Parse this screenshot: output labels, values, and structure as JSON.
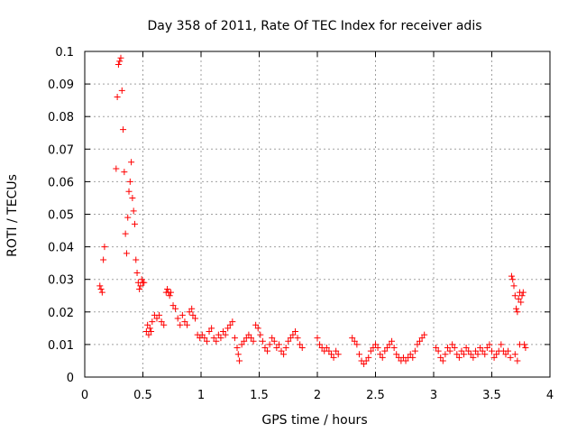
{
  "chart_data": {
    "type": "scatter",
    "title": "Day 358 of 2011, Rate Of TEC Index for receiver adis",
    "xlabel": "GPS time / hours",
    "ylabel": "ROTI / TECUs",
    "xlim": [
      0,
      4
    ],
    "ylim": [
      0,
      0.1
    ],
    "x_ticks": [
      0,
      0.5,
      1,
      1.5,
      2,
      2.5,
      3,
      3.5,
      4
    ],
    "x_tick_labels": [
      "0",
      "0.5",
      "1",
      "1.5",
      "2",
      "2.5",
      "3",
      "3.5",
      "4"
    ],
    "y_ticks": [
      0,
      0.01,
      0.02,
      0.03,
      0.04,
      0.05,
      0.06,
      0.07,
      0.08,
      0.09,
      0.1
    ],
    "y_tick_labels": [
      "0",
      "0.01",
      "0.02",
      "0.03",
      "0.04",
      "0.05",
      "0.06",
      "0.07",
      "0.08",
      "0.09",
      "0.1"
    ],
    "grid": true,
    "marker": "+",
    "color": "#ff0000",
    "series": [
      {
        "name": "ROTI",
        "points": [
          [
            0.13,
            0.028
          ],
          [
            0.14,
            0.027
          ],
          [
            0.15,
            0.026
          ],
          [
            0.16,
            0.036
          ],
          [
            0.17,
            0.04
          ],
          [
            0.27,
            0.064
          ],
          [
            0.28,
            0.086
          ],
          [
            0.29,
            0.096
          ],
          [
            0.3,
            0.097
          ],
          [
            0.31,
            0.098
          ],
          [
            0.32,
            0.088
          ],
          [
            0.33,
            0.076
          ],
          [
            0.34,
            0.063
          ],
          [
            0.35,
            0.044
          ],
          [
            0.36,
            0.038
          ],
          [
            0.37,
            0.049
          ],
          [
            0.38,
            0.057
          ],
          [
            0.39,
            0.06
          ],
          [
            0.4,
            0.066
          ],
          [
            0.41,
            0.055
          ],
          [
            0.42,
            0.051
          ],
          [
            0.43,
            0.047
          ],
          [
            0.44,
            0.036
          ],
          [
            0.45,
            0.032
          ],
          [
            0.46,
            0.029
          ],
          [
            0.47,
            0.027
          ],
          [
            0.48,
            0.028
          ],
          [
            0.49,
            0.03
          ],
          [
            0.5,
            0.029
          ],
          [
            0.51,
            0.029
          ],
          [
            0.53,
            0.014
          ],
          [
            0.54,
            0.016
          ],
          [
            0.55,
            0.013
          ],
          [
            0.56,
            0.015
          ],
          [
            0.57,
            0.014
          ],
          [
            0.58,
            0.017
          ],
          [
            0.6,
            0.019
          ],
          [
            0.62,
            0.018
          ],
          [
            0.64,
            0.019
          ],
          [
            0.66,
            0.017
          ],
          [
            0.68,
            0.016
          ],
          [
            0.7,
            0.026
          ],
          [
            0.71,
            0.027
          ],
          [
            0.72,
            0.026
          ],
          [
            0.73,
            0.025
          ],
          [
            0.74,
            0.026
          ],
          [
            0.76,
            0.022
          ],
          [
            0.78,
            0.021
          ],
          [
            0.8,
            0.018
          ],
          [
            0.82,
            0.016
          ],
          [
            0.84,
            0.019
          ],
          [
            0.86,
            0.017
          ],
          [
            0.88,
            0.016
          ],
          [
            0.9,
            0.02
          ],
          [
            0.92,
            0.021
          ],
          [
            0.93,
            0.019
          ],
          [
            0.95,
            0.018
          ],
          [
            0.97,
            0.013
          ],
          [
            0.99,
            0.012
          ],
          [
            1.01,
            0.013
          ],
          [
            1.03,
            0.012
          ],
          [
            1.05,
            0.011
          ],
          [
            1.07,
            0.014
          ],
          [
            1.09,
            0.015
          ],
          [
            1.11,
            0.012
          ],
          [
            1.13,
            0.011
          ],
          [
            1.15,
            0.013
          ],
          [
            1.17,
            0.012
          ],
          [
            1.19,
            0.014
          ],
          [
            1.21,
            0.013
          ],
          [
            1.23,
            0.015
          ],
          [
            1.25,
            0.016
          ],
          [
            1.27,
            0.017
          ],
          [
            1.29,
            0.012
          ],
          [
            1.31,
            0.009
          ],
          [
            1.32,
            0.007
          ],
          [
            1.33,
            0.005
          ],
          [
            1.35,
            0.01
          ],
          [
            1.37,
            0.011
          ],
          [
            1.39,
            0.012
          ],
          [
            1.41,
            0.013
          ],
          [
            1.43,
            0.012
          ],
          [
            1.45,
            0.011
          ],
          [
            1.47,
            0.016
          ],
          [
            1.49,
            0.015
          ],
          [
            1.51,
            0.013
          ],
          [
            1.53,
            0.011
          ],
          [
            1.55,
            0.009
          ],
          [
            1.57,
            0.008
          ],
          [
            1.59,
            0.01
          ],
          [
            1.61,
            0.012
          ],
          [
            1.63,
            0.011
          ],
          [
            1.65,
            0.009
          ],
          [
            1.67,
            0.01
          ],
          [
            1.69,
            0.008
          ],
          [
            1.71,
            0.007
          ],
          [
            1.73,
            0.009
          ],
          [
            1.75,
            0.011
          ],
          [
            1.77,
            0.012
          ],
          [
            1.79,
            0.013
          ],
          [
            1.81,
            0.014
          ],
          [
            1.83,
            0.012
          ],
          [
            1.85,
            0.01
          ],
          [
            1.87,
            0.009
          ],
          [
            2.0,
            0.012
          ],
          [
            2.02,
            0.01
          ],
          [
            2.04,
            0.009
          ],
          [
            2.06,
            0.008
          ],
          [
            2.08,
            0.009
          ],
          [
            2.1,
            0.008
          ],
          [
            2.12,
            0.007
          ],
          [
            2.14,
            0.006
          ],
          [
            2.16,
            0.008
          ],
          [
            2.18,
            0.007
          ],
          [
            2.3,
            0.012
          ],
          [
            2.32,
            0.011
          ],
          [
            2.34,
            0.01
          ],
          [
            2.36,
            0.007
          ],
          [
            2.38,
            0.005
          ],
          [
            2.4,
            0.004
          ],
          [
            2.42,
            0.005
          ],
          [
            2.44,
            0.006
          ],
          [
            2.46,
            0.008
          ],
          [
            2.48,
            0.009
          ],
          [
            2.5,
            0.01
          ],
          [
            2.52,
            0.009
          ],
          [
            2.54,
            0.007
          ],
          [
            2.56,
            0.006
          ],
          [
            2.58,
            0.008
          ],
          [
            2.6,
            0.009
          ],
          [
            2.62,
            0.01
          ],
          [
            2.64,
            0.011
          ],
          [
            2.66,
            0.009
          ],
          [
            2.68,
            0.007
          ],
          [
            2.7,
            0.006
          ],
          [
            2.72,
            0.005
          ],
          [
            2.74,
            0.006
          ],
          [
            2.76,
            0.005
          ],
          [
            2.78,
            0.006
          ],
          [
            2.8,
            0.007
          ],
          [
            2.82,
            0.006
          ],
          [
            2.84,
            0.008
          ],
          [
            2.86,
            0.01
          ],
          [
            2.88,
            0.011
          ],
          [
            2.9,
            0.012
          ],
          [
            2.92,
            0.013
          ],
          [
            3.02,
            0.009
          ],
          [
            3.04,
            0.008
          ],
          [
            3.06,
            0.006
          ],
          [
            3.08,
            0.005
          ],
          [
            3.1,
            0.007
          ],
          [
            3.12,
            0.009
          ],
          [
            3.14,
            0.008
          ],
          [
            3.16,
            0.01
          ],
          [
            3.18,
            0.009
          ],
          [
            3.2,
            0.007
          ],
          [
            3.22,
            0.006
          ],
          [
            3.24,
            0.008
          ],
          [
            3.26,
            0.007
          ],
          [
            3.28,
            0.009
          ],
          [
            3.3,
            0.008
          ],
          [
            3.32,
            0.007
          ],
          [
            3.34,
            0.006
          ],
          [
            3.36,
            0.008
          ],
          [
            3.38,
            0.007
          ],
          [
            3.4,
            0.009
          ],
          [
            3.42,
            0.008
          ],
          [
            3.44,
            0.007
          ],
          [
            3.46,
            0.009
          ],
          [
            3.48,
            0.01
          ],
          [
            3.5,
            0.008
          ],
          [
            3.52,
            0.006
          ],
          [
            3.54,
            0.007
          ],
          [
            3.56,
            0.008
          ],
          [
            3.58,
            0.01
          ],
          [
            3.6,
            0.008
          ],
          [
            3.62,
            0.007
          ],
          [
            3.64,
            0.008
          ],
          [
            3.66,
            0.006
          ],
          [
            3.67,
            0.031
          ],
          [
            3.68,
            0.03
          ],
          [
            3.69,
            0.028
          ],
          [
            3.7,
            0.025
          ],
          [
            3.71,
            0.021
          ],
          [
            3.72,
            0.02
          ],
          [
            3.73,
            0.024
          ],
          [
            3.74,
            0.026
          ],
          [
            3.75,
            0.023
          ],
          [
            3.76,
            0.025
          ],
          [
            3.77,
            0.026
          ],
          [
            3.78,
            0.01
          ],
          [
            3.79,
            0.009
          ],
          [
            3.74,
            0.01
          ],
          [
            3.72,
            0.005
          ],
          [
            3.7,
            0.007
          ]
        ]
      }
    ]
  }
}
